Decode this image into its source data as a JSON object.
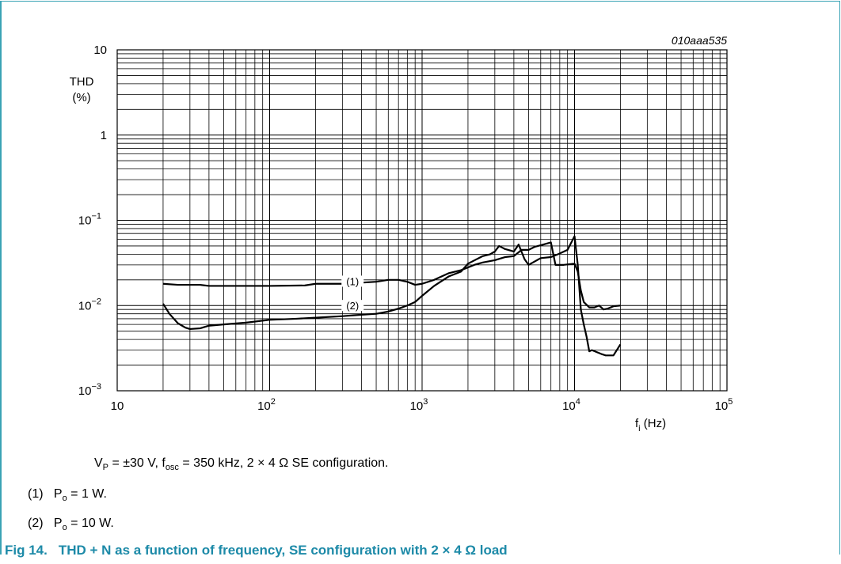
{
  "chart_data": {
    "type": "line",
    "id_label": "010aaa535",
    "ylabel": "THD\n(%)",
    "xlabel": "fi (Hz)",
    "xscale": "log",
    "yscale": "log",
    "xlim": [
      10,
      100000
    ],
    "ylim": [
      0.001,
      10
    ],
    "grid": true,
    "x_tick_labels": [
      {
        "value": 10,
        "base": "10",
        "exp": ""
      },
      {
        "value": 100,
        "base": "10",
        "exp": "2"
      },
      {
        "value": 1000,
        "base": "10",
        "exp": "3"
      },
      {
        "value": 10000,
        "base": "10",
        "exp": "4"
      },
      {
        "value": 100000,
        "base": "10",
        "exp": "5"
      }
    ],
    "y_tick_labels": [
      {
        "value": 10,
        "base": "10",
        "exp": ""
      },
      {
        "value": 1,
        "base": "1",
        "exp": ""
      },
      {
        "value": 0.1,
        "base": "10",
        "exp": "−1"
      },
      {
        "value": 0.01,
        "base": "10",
        "exp": "−2"
      },
      {
        "value": 0.001,
        "base": "10",
        "exp": "−3"
      }
    ],
    "series": [
      {
        "name": "(1)",
        "points": [
          [
            20,
            0.018
          ],
          [
            25,
            0.0175
          ],
          [
            35,
            0.0175
          ],
          [
            40,
            0.017
          ],
          [
            60,
            0.017
          ],
          [
            100,
            0.017
          ],
          [
            170,
            0.0172
          ],
          [
            200,
            0.018
          ],
          [
            300,
            0.018
          ],
          [
            500,
            0.019
          ],
          [
            600,
            0.02
          ],
          [
            700,
            0.02
          ],
          [
            800,
            0.019
          ],
          [
            900,
            0.0175
          ],
          [
            1000,
            0.018
          ],
          [
            1200,
            0.02
          ],
          [
            1500,
            0.024
          ],
          [
            1800,
            0.026
          ],
          [
            2000,
            0.028
          ],
          [
            2200,
            0.03
          ],
          [
            2500,
            0.032
          ],
          [
            3000,
            0.034
          ],
          [
            3500,
            0.037
          ],
          [
            4000,
            0.038
          ],
          [
            4500,
            0.045
          ],
          [
            5000,
            0.045
          ],
          [
            5500,
            0.049
          ],
          [
            6000,
            0.051
          ],
          [
            7000,
            0.055
          ],
          [
            7500,
            0.03
          ],
          [
            8500,
            0.03
          ],
          [
            10000,
            0.031
          ],
          [
            10500,
            0.025
          ],
          [
            11000,
            0.015
          ],
          [
            11500,
            0.011
          ],
          [
            12500,
            0.0095
          ],
          [
            13500,
            0.0095
          ],
          [
            14500,
            0.01
          ],
          [
            15500,
            0.009
          ],
          [
            16500,
            0.0092
          ],
          [
            18000,
            0.0098
          ],
          [
            20000,
            0.01
          ]
        ]
      },
      {
        "name": "(2)",
        "points": [
          [
            20,
            0.0105
          ],
          [
            22,
            0.008
          ],
          [
            25,
            0.0062
          ],
          [
            28,
            0.0055
          ],
          [
            30,
            0.0053
          ],
          [
            35,
            0.0054
          ],
          [
            40,
            0.0058
          ],
          [
            50,
            0.006
          ],
          [
            70,
            0.0063
          ],
          [
            100,
            0.0068
          ],
          [
            150,
            0.007
          ],
          [
            200,
            0.0072
          ],
          [
            300,
            0.0075
          ],
          [
            400,
            0.0078
          ],
          [
            500,
            0.008
          ],
          [
            600,
            0.0085
          ],
          [
            700,
            0.0092
          ],
          [
            800,
            0.01
          ],
          [
            900,
            0.011
          ],
          [
            1000,
            0.013
          ],
          [
            1200,
            0.017
          ],
          [
            1500,
            0.022
          ],
          [
            1800,
            0.025
          ],
          [
            2000,
            0.031
          ],
          [
            2500,
            0.038
          ],
          [
            2800,
            0.04
          ],
          [
            3000,
            0.043
          ],
          [
            3200,
            0.05
          ],
          [
            3500,
            0.046
          ],
          [
            4000,
            0.043
          ],
          [
            4300,
            0.052
          ],
          [
            4700,
            0.035
          ],
          [
            5000,
            0.03
          ],
          [
            6000,
            0.036
          ],
          [
            7000,
            0.037
          ],
          [
            7800,
            0.04
          ],
          [
            9000,
            0.045
          ],
          [
            10000,
            0.065
          ],
          [
            10500,
            0.03
          ],
          [
            11000,
            0.009
          ],
          [
            11500,
            0.006
          ],
          [
            12000,
            0.0043
          ],
          [
            12500,
            0.0029
          ],
          [
            13000,
            0.003
          ],
          [
            15000,
            0.0027
          ],
          [
            16000,
            0.0026
          ],
          [
            18000,
            0.0026
          ],
          [
            20000,
            0.0035
          ]
        ]
      }
    ]
  },
  "conditions": {
    "vp_main": "V",
    "vp_sub": "P",
    "vp_value": " = ±30 V, f",
    "fosc_sub": "osc",
    "rest": " = 350 kHz, 2 × 4 Ω SE configuration."
  },
  "legend_notes": [
    {
      "marker": "(1)",
      "p": "P",
      "sub": "o",
      "text": " = 1 W."
    },
    {
      "marker": "(2)",
      "p": "P",
      "sub": "o",
      "text": " = 10 W."
    }
  ],
  "caption": {
    "fig": "Fig 14.",
    "text": "THD + N as a function of frequency, SE configuration with 2 × 4 Ω load"
  }
}
